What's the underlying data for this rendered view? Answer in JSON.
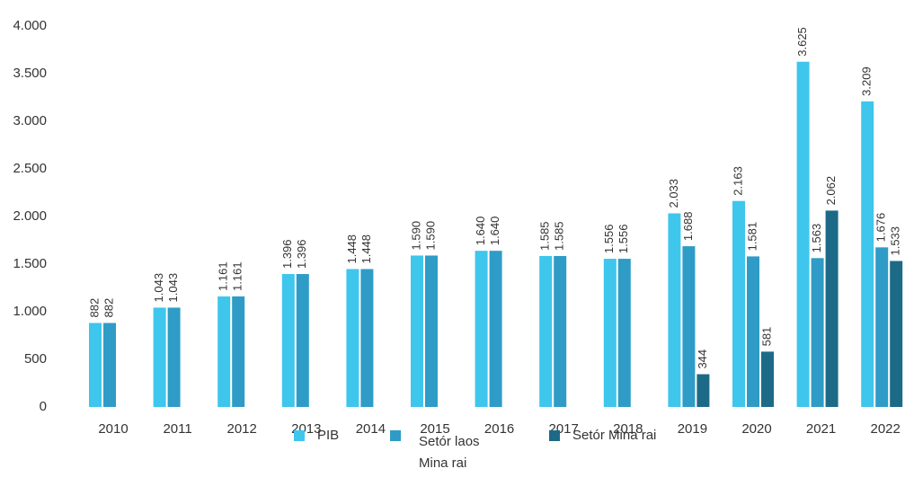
{
  "chart_data": {
    "type": "bar",
    "categories": [
      "2010",
      "2011",
      "2012",
      "2013",
      "2014",
      "2015",
      "2016",
      "2017",
      "2018",
      "2019",
      "2020",
      "2021",
      "2022"
    ],
    "series": [
      {
        "name": "PIB",
        "color": "#3ec6ec",
        "values": [
          882,
          1043,
          1161,
          1396,
          1448,
          1590,
          1640,
          1585,
          1556,
          2033,
          2163,
          3625,
          3209
        ],
        "value_labels": [
          "882",
          "1.043",
          "1.161",
          "1.396",
          "1.448",
          "1.590",
          "1.640",
          "1.585",
          "1.556",
          "2.033",
          "2.163",
          "3.625",
          "3.209"
        ]
      },
      {
        "name": "Setór laos Mina rai",
        "color": "#2e9cc6",
        "values": [
          882,
          1043,
          1161,
          1396,
          1448,
          1590,
          1640,
          1585,
          1556,
          1688,
          1581,
          1563,
          1676
        ],
        "value_labels": [
          "882",
          "1.043",
          "1.161",
          "1.396",
          "1.448",
          "1.590",
          "1.640",
          "1.585",
          "1.556",
          "1.688",
          "1.581",
          "1.563",
          "1.676"
        ]
      },
      {
        "name": "Setór Mina rai",
        "color": "#1d6a87",
        "values": [
          null,
          null,
          null,
          null,
          null,
          null,
          null,
          null,
          null,
          344,
          581,
          2062,
          1533
        ],
        "value_labels": [
          null,
          null,
          null,
          null,
          null,
          null,
          null,
          null,
          null,
          "344",
          "581",
          "2.062",
          "1.533"
        ]
      }
    ],
    "ylim": [
      0,
      4000
    ],
    "yticks": [
      0,
      500,
      {
        "value": 1000,
        "label": "1.000"
      },
      {
        "value": 1500,
        "label": "1.500"
      },
      {
        "value": 2000,
        "label": "2.000"
      },
      {
        "value": 2500,
        "label": "2.500"
      },
      {
        "value": 3000,
        "label": "3.000"
      },
      {
        "value": 3500,
        "label": "3.500"
      },
      {
        "value": 4000,
        "label": "4.000"
      }
    ],
    "legend": "bottom"
  }
}
